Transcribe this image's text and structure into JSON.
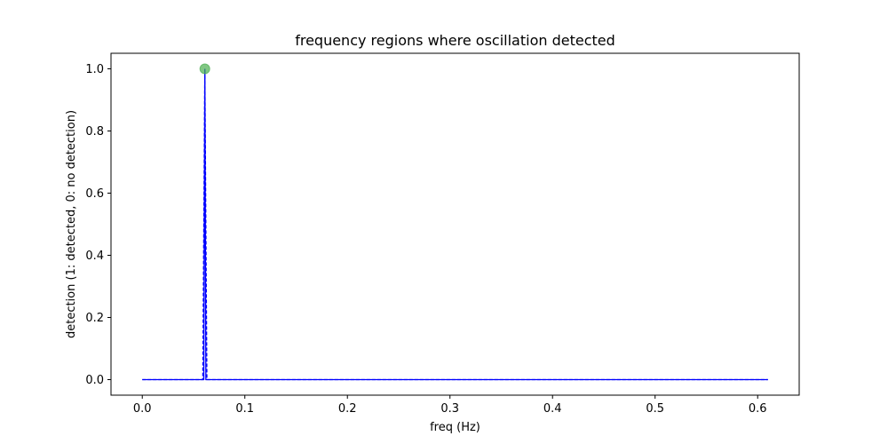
{
  "chart_data": {
    "type": "line",
    "title": "frequency regions where oscillation detected",
    "xlabel": "freq (Hz)",
    "ylabel": "detection (1: detected, 0: no detection)",
    "xlim": [
      -0.0305,
      0.6405
    ],
    "ylim": [
      -0.05,
      1.05
    ],
    "xticks": [
      0.0,
      0.1,
      0.2,
      0.3,
      0.4,
      0.5,
      0.6
    ],
    "xtick_labels": [
      "0.0",
      "0.1",
      "0.2",
      "0.3",
      "0.4",
      "0.5",
      "0.6"
    ],
    "yticks": [
      0.0,
      0.2,
      0.4,
      0.6,
      0.8,
      1.0
    ],
    "ytick_labels": [
      "0.0",
      "0.2",
      "0.4",
      "0.6",
      "0.8",
      "1.0"
    ],
    "grid": false,
    "series": [
      {
        "style": "solid",
        "color": "#0000ff",
        "x": [
          0.0,
          0.06,
          0.061,
          0.062,
          0.61
        ],
        "y": [
          0,
          0,
          1,
          0,
          0
        ]
      },
      {
        "style": "dashed",
        "color": "#0000ff",
        "x": [
          0.0,
          0.059,
          0.061,
          0.063,
          0.61
        ],
        "y": [
          0,
          0,
          1,
          0,
          0
        ]
      }
    ],
    "markers": [
      {
        "x": 0.061,
        "y": 1.0,
        "color": "#4caf50",
        "opacity": 0.7
      }
    ]
  }
}
